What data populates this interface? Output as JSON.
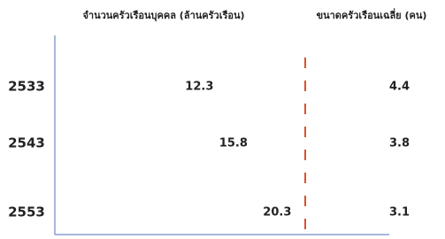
{
  "chart_data": {
    "type": "pictogram",
    "categories": [
      "2533",
      "2543",
      "2553"
    ],
    "series": [
      {
        "name": "จำนวนครัวเรือนบุคคล (ล้านครัวเรือน)",
        "color": "#2255c4",
        "values": [
          12.3,
          15.8,
          20.3
        ]
      },
      {
        "name": "ขนาดครัวเรือนเฉลี่ย (คน)",
        "color": "#c8463c",
        "values": [
          4.4,
          3.8,
          3.1
        ]
      }
    ]
  }
}
